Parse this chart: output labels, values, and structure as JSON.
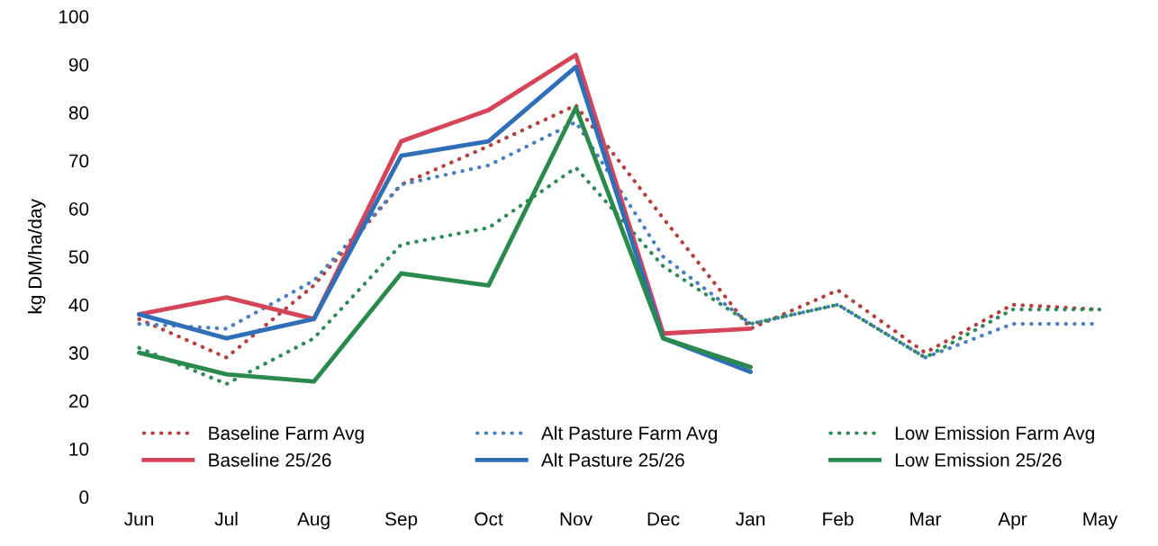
{
  "chart_data": {
    "type": "line",
    "ylabel": "kg DM/ha/day",
    "categories": [
      "Jun",
      "Jul",
      "Aug",
      "Sep",
      "Oct",
      "Nov",
      "Dec",
      "Jan",
      "Feb",
      "Mar",
      "Apr",
      "May"
    ],
    "ylim": [
      0,
      100
    ],
    "yticks": [
      0,
      10,
      20,
      30,
      40,
      50,
      60,
      70,
      80,
      90,
      100
    ],
    "grid": false,
    "legend": "bottom",
    "marker": "none",
    "series": [
      {
        "name": "Baseline Farm Avg",
        "color": "#b5413f",
        "line_style": "dotted",
        "values": [
          37,
          29,
          44,
          65,
          73,
          81.5,
          58,
          35,
          43,
          30,
          40,
          39
        ]
      },
      {
        "name": "Alt Pasture Farm Avg",
        "color": "#4a7fc1",
        "line_style": "dotted",
        "values": [
          36,
          35,
          45,
          65,
          69,
          78,
          50,
          36,
          40,
          29,
          36,
          36
        ]
      },
      {
        "name": "Low Emission Farm Avg",
        "color": "#2e8b57",
        "line_style": "dotted",
        "values": [
          31,
          23.5,
          33,
          52.5,
          56,
          68.5,
          48,
          36,
          40,
          29,
          39,
          39
        ]
      },
      {
        "name": "Baseline 25/26",
        "color": "#d6445a",
        "line_style": "solid",
        "values": [
          38,
          41.5,
          37,
          74,
          80.5,
          92,
          34,
          35,
          null,
          null,
          null,
          null
        ]
      },
      {
        "name": "Alt Pasture 25/26",
        "color": "#2f6fb8",
        "line_style": "solid",
        "values": [
          38,
          33,
          37,
          71,
          74,
          89.5,
          33,
          26,
          null,
          null,
          null,
          null
        ]
      },
      {
        "name": "Low Emission 25/26",
        "color": "#2a8a4e",
        "line_style": "solid",
        "values": [
          30,
          25.5,
          24,
          46.5,
          44,
          81,
          33,
          27,
          null,
          null,
          null,
          null
        ]
      }
    ]
  }
}
